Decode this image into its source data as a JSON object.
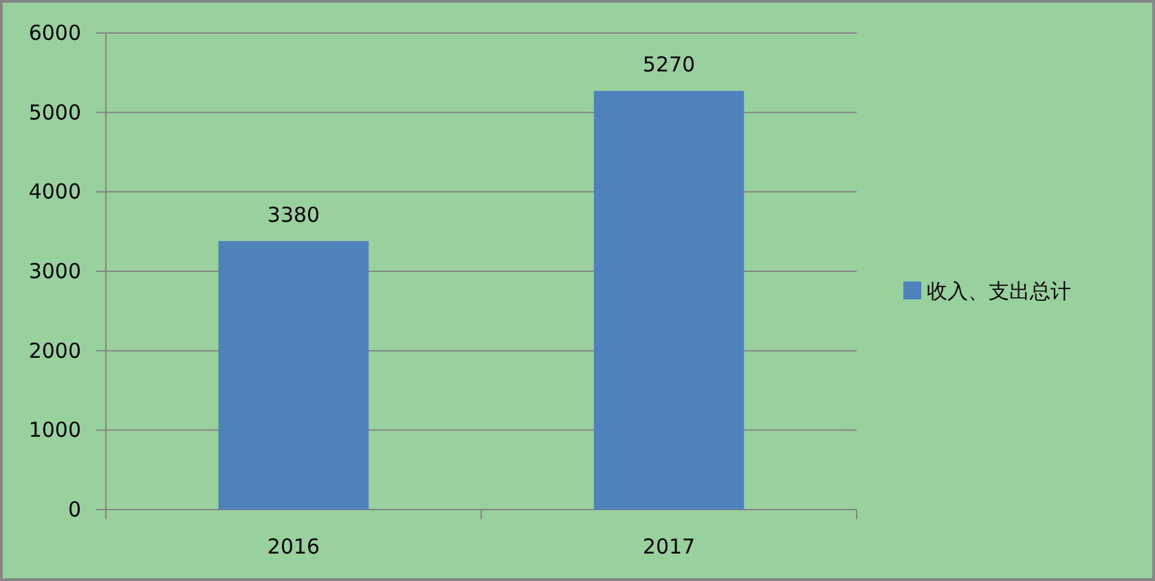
{
  "chart_data": {
    "type": "bar",
    "categories": [
      "2016",
      "2017"
    ],
    "series": [
      {
        "name": "收入、支出总计",
        "color": "#4f81bd",
        "values": [
          3380,
          5270
        ]
      }
    ],
    "ylim": [
      0,
      6000
    ],
    "yticks": [
      0,
      1000,
      2000,
      3000,
      4000,
      5000,
      6000
    ],
    "grid": "y",
    "legend": "right",
    "data_labels": true
  }
}
